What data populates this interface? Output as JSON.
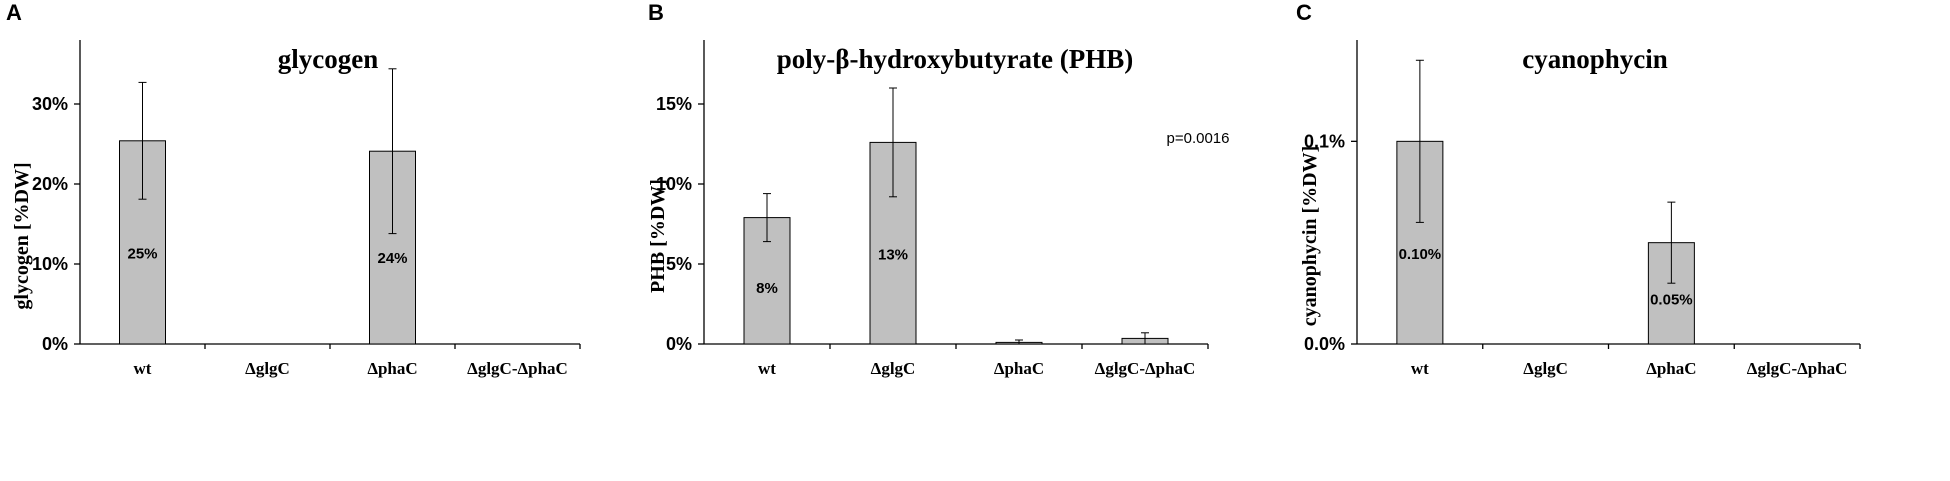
{
  "chart_data": [
    {
      "panel": "A",
      "type": "bar",
      "title": "glycogen",
      "ylabel": "glycogen [%DW]",
      "categories": [
        "wt",
        "ΔglgC",
        "ΔphaC",
        "ΔglgC-ΔphaC"
      ],
      "values": [
        25.4,
        0,
        24.1,
        0
      ],
      "errors": [
        7.3,
        0,
        10.3,
        0
      ],
      "data_labels": [
        "25%",
        "",
        "24%",
        ""
      ],
      "yticks": [
        "0%",
        "10%",
        "20%",
        "30%"
      ],
      "ytick_values": [
        0,
        10,
        20,
        30
      ],
      "ylim": [
        0,
        38
      ],
      "annotation": ""
    },
    {
      "panel": "B",
      "type": "bar",
      "title": "poly-β-hydroxybutyrate (PHB)",
      "ylabel": "PHB [%DW]",
      "categories": [
        "wt",
        "ΔglgC",
        "ΔphaC",
        "ΔglgC-ΔphaC"
      ],
      "values": [
        7.9,
        12.6,
        0.1,
        0.35
      ],
      "errors": [
        1.5,
        3.4,
        0.15,
        0.35
      ],
      "data_labels": [
        "8%",
        "13%",
        "",
        ""
      ],
      "yticks": [
        "0%",
        "5%",
        "10%",
        "15%"
      ],
      "ytick_values": [
        0,
        5,
        10,
        15
      ],
      "ylim": [
        0,
        19
      ],
      "annotation": "p=0.0016"
    },
    {
      "panel": "C",
      "type": "bar",
      "title": "cyanophycin",
      "ylabel": "cyanophycin [%DW]",
      "categories": [
        "wt",
        "ΔglgC",
        "ΔphaC",
        "ΔglgC-ΔphaC"
      ],
      "values": [
        0.1,
        0,
        0.05,
        0
      ],
      "errors": [
        0.04,
        0,
        0.02,
        0
      ],
      "data_labels": [
        "0.10%",
        "",
        "0.05%",
        ""
      ],
      "yticks": [
        "0.0%",
        "0.1%"
      ],
      "ytick_values": [
        0.0,
        0.1
      ],
      "ylim": [
        0,
        0.15
      ],
      "annotation": ""
    }
  ]
}
